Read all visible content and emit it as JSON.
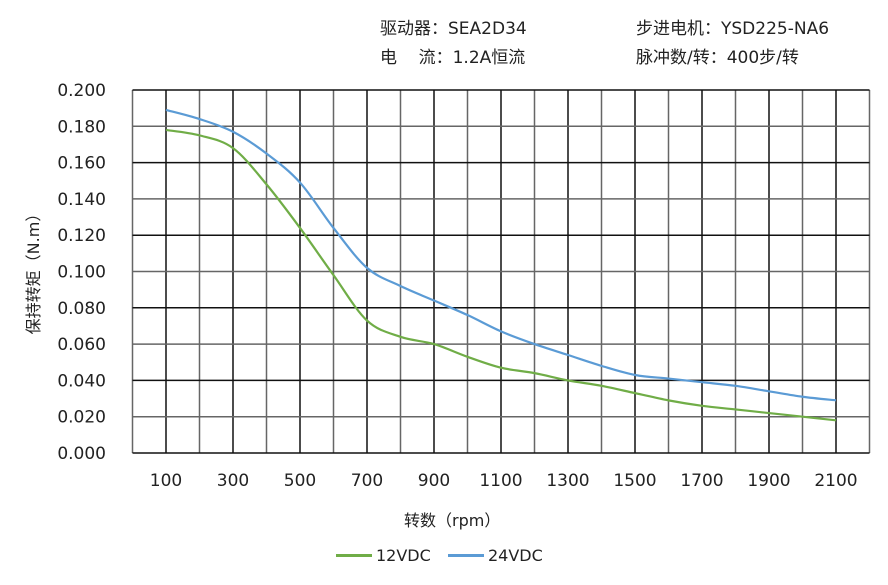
{
  "header": {
    "driver": "驱动器：SEA2D34",
    "motor": "步进电机：YSD225-NA6",
    "current": "电    流：1.2A恒流",
    "pulses": "脉冲数/转：400步/转"
  },
  "chart_data": {
    "type": "line",
    "xlabel": "转数（rpm）",
    "ylabel": "保持转矩（N.m）",
    "xlim": [
      0,
      2200
    ],
    "ylim": [
      0,
      0.2
    ],
    "grid": true,
    "legend_position": "bottom",
    "x_ticks": [
      "100",
      "300",
      "500",
      "700",
      "900",
      "1100",
      "1300",
      "1500",
      "1700",
      "1900",
      "2100"
    ],
    "y_ticks": [
      "0.000",
      "0.020",
      "0.040",
      "0.060",
      "0.080",
      "0.100",
      "0.120",
      "0.140",
      "0.160",
      "0.180",
      "0.200"
    ],
    "x": [
      100,
      200,
      300,
      400,
      500,
      600,
      700,
      800,
      900,
      1000,
      1100,
      1200,
      1300,
      1400,
      1500,
      1600,
      1700,
      1800,
      1900,
      2000,
      2100
    ],
    "series": [
      {
        "name": "12VDC",
        "color": "#70ad47",
        "values": [
          0.178,
          0.175,
          0.168,
          0.148,
          0.124,
          0.098,
          0.073,
          0.064,
          0.06,
          0.053,
          0.047,
          0.044,
          0.04,
          0.037,
          0.033,
          0.029,
          0.026,
          0.024,
          0.022,
          0.02,
          0.018
        ]
      },
      {
        "name": "24VDC",
        "color": "#5b9bd5",
        "values": [
          0.189,
          0.184,
          0.177,
          0.165,
          0.149,
          0.124,
          0.102,
          0.092,
          0.084,
          0.076,
          0.067,
          0.06,
          0.054,
          0.048,
          0.043,
          0.041,
          0.039,
          0.037,
          0.034,
          0.031,
          0.029
        ]
      }
    ]
  }
}
